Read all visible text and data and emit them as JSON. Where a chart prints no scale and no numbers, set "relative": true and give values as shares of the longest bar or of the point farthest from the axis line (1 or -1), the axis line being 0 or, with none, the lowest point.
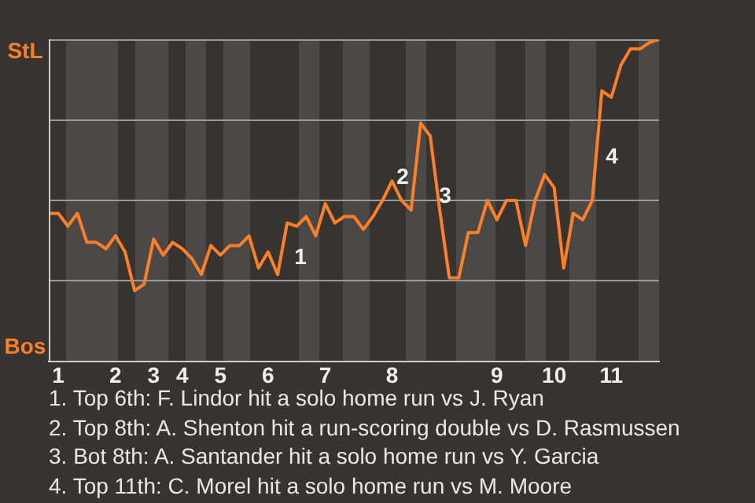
{
  "chart_data": {
    "type": "line",
    "relative": true,
    "categories": [
      null,
      "1",
      null,
      null,
      null,
      null,
      null,
      "2",
      null,
      null,
      null,
      "3",
      null,
      null,
      "4",
      null,
      null,
      null,
      "5",
      null,
      null,
      null,
      null,
      "6",
      null,
      null,
      null,
      null,
      null,
      "7",
      null,
      null,
      null,
      null,
      null,
      null,
      "8",
      null,
      null,
      null,
      null,
      null,
      null,
      null,
      null,
      null,
      null,
      "9",
      null,
      null,
      null,
      null,
      null,
      "10",
      null,
      null,
      null,
      null,
      null,
      "11",
      null,
      null,
      null,
      null,
      null
    ],
    "series": [
      {
        "color": "#ff7f27",
        "values": [
          0.46,
          0.46,
          0.42,
          0.46,
          0.37,
          0.37,
          0.35,
          0.39,
          0.34,
          0.22,
          0.24,
          0.38,
          0.33,
          0.37,
          0.35,
          0.32,
          0.27,
          0.36,
          0.33,
          0.36,
          0.36,
          0.39,
          0.29,
          0.34,
          0.27,
          0.43,
          0.42,
          0.45,
          0.39,
          0.49,
          0.43,
          0.45,
          0.45,
          0.41,
          0.45,
          0.5,
          0.56,
          0.5,
          0.47,
          0.74,
          0.7,
          0.47,
          0.26,
          0.26,
          0.4,
          0.4,
          0.5,
          0.44,
          0.5,
          0.5,
          0.36,
          0.5,
          0.58,
          0.54,
          0.29,
          0.46,
          0.44,
          0.5,
          0.84,
          0.82,
          0.92,
          0.97,
          0.97,
          0.99,
          1
        ]
      }
    ],
    "legend": false,
    "marker": "none",
    "line_style": "solid",
    "annotations": [
      "StL",
      "Bos",
      "1",
      "2",
      "3",
      "4",
      "1. Top 6th: F. Lindor hit a solo home run vs J. Ryan",
      "2. Top 8th: A. Shenton hit a run-scoring double vs D. Rasmussen",
      "3. Bot 8th: A. Santander hit a solo home run vs Y. Garcia",
      "4. Top 11th: C. Morel hit a solo home run vs M. Moore"
    ]
  }
}
